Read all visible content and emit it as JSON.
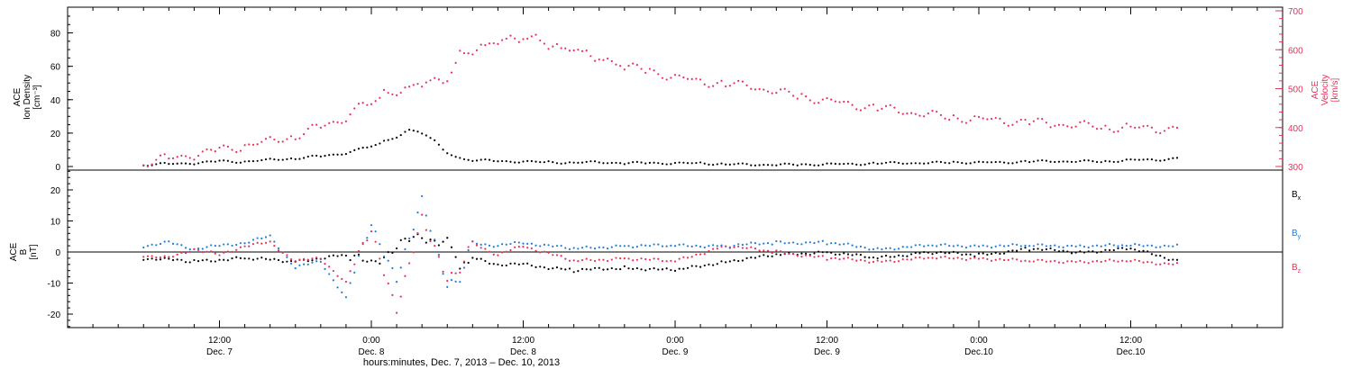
{
  "colors": {
    "black": "#000000",
    "red": "#e8305a",
    "blue": "#1e7be0"
  },
  "chart_data": [
    {
      "type": "scatter",
      "panel": "top",
      "ylabel_left": [
        "ACE",
        "Ion Density",
        "[cm⁻³]"
      ],
      "ylabel_right": [
        "ACE",
        "Velocity",
        "[km/s]"
      ],
      "ylim_left": [
        0,
        90
      ],
      "ylim_right": [
        300,
        700
      ],
      "yticks_left": [
        "0",
        "20",
        "40",
        "60",
        "80"
      ],
      "yticks_right": [
        "300",
        "400",
        "500",
        "600",
        "700"
      ],
      "series": [
        {
          "role": "density",
          "color": "#000000",
          "x": [
            6,
            8,
            10,
            12,
            14,
            16,
            18,
            20,
            22,
            23,
            24,
            25,
            26,
            27,
            28,
            29,
            30,
            31,
            32,
            34,
            36,
            38,
            40,
            42,
            44,
            46,
            48,
            50,
            52,
            54,
            56,
            58,
            60,
            62,
            64,
            66,
            68,
            70,
            72,
            74,
            76,
            78,
            80,
            82,
            84,
            86,
            88
          ],
          "y": [
            1,
            1.5,
            2,
            3,
            3,
            4,
            5,
            6,
            8,
            10,
            12,
            15,
            18,
            22,
            20,
            15,
            8,
            5,
            4,
            3,
            3,
            2.5,
            2.5,
            2.5,
            2,
            2,
            2,
            2,
            1.5,
            1,
            1,
            1,
            1.5,
            1.5,
            2,
            2,
            2,
            2.5,
            2.5,
            2.5,
            3,
            3,
            3,
            3,
            4,
            4,
            5
          ]
        },
        {
          "role": "velocity",
          "color": "#e8305a",
          "x": [
            6,
            8,
            10,
            12,
            14,
            16,
            18,
            20,
            22,
            23,
            24,
            25,
            26,
            27,
            28,
            29,
            30,
            31,
            32,
            33,
            34,
            35,
            36,
            37,
            38,
            39,
            40,
            41,
            42,
            43,
            44,
            46,
            48,
            50,
            52,
            54,
            56,
            58,
            60,
            62,
            64,
            66,
            68,
            70,
            72,
            74,
            76,
            78,
            80,
            82,
            84,
            86,
            88
          ],
          "y": [
            310,
            320,
            330,
            340,
            355,
            365,
            380,
            400,
            425,
            450,
            460,
            490,
            495,
            505,
            510,
            515,
            520,
            595,
            600,
            610,
            615,
            625,
            630,
            640,
            612,
            600,
            595,
            590,
            580,
            575,
            555,
            545,
            530,
            520,
            512,
            505,
            490,
            480,
            470,
            460,
            450,
            440,
            432,
            426,
            423,
            418,
            413,
            408,
            405,
            402,
            400,
            398,
            395
          ]
        }
      ]
    },
    {
      "type": "scatter",
      "panel": "bottom",
      "ylabel": [
        "ACE",
        "B",
        "[nT]"
      ],
      "ylim": [
        -25,
        25
      ],
      "yticks": [
        "-20",
        "-10",
        "0",
        "10",
        "20"
      ],
      "legend": [
        {
          "name": "Bx",
          "color": "#000000"
        },
        {
          "name": "By",
          "color": "#1e7be0"
        },
        {
          "name": "Bz",
          "color": "#e8305a"
        }
      ],
      "series": [
        {
          "name": "Bx",
          "color": "#000000",
          "x": [
            6,
            10,
            14,
            18,
            22,
            24,
            26,
            28,
            30,
            31,
            32,
            34,
            36,
            40,
            44,
            48,
            52,
            56,
            60,
            64,
            68,
            72,
            76,
            80,
            84,
            88
          ],
          "y": [
            -2,
            -3,
            -2,
            -3,
            -1,
            -4,
            2,
            5,
            3,
            -4,
            -2,
            -4,
            -4,
            -6,
            -5,
            -6,
            -3,
            -1,
            0,
            -2,
            0,
            -1,
            1,
            0,
            1,
            -3
          ]
        },
        {
          "name": "By",
          "color": "#1e7be0",
          "x": [
            6,
            8,
            10,
            12,
            14,
            16,
            18,
            20,
            22,
            24,
            26,
            28,
            30,
            31,
            32,
            34,
            36,
            40,
            44,
            48,
            52,
            56,
            60,
            64,
            68,
            72,
            76,
            80,
            84,
            88
          ],
          "y": [
            2,
            3,
            1,
            2,
            3,
            5,
            -5,
            -3,
            -15,
            10,
            -10,
            18,
            -12,
            -8,
            3,
            2,
            3,
            1,
            2,
            2,
            2,
            3,
            3,
            1,
            2,
            2,
            2,
            2,
            2,
            2
          ]
        },
        {
          "name": "Bz",
          "color": "#e8305a",
          "x": [
            6,
            8,
            10,
            12,
            14,
            16,
            18,
            20,
            22,
            24,
            26,
            28,
            30,
            31,
            32,
            34,
            36,
            40,
            44,
            48,
            52,
            56,
            60,
            64,
            68,
            72,
            76,
            80,
            84,
            88
          ],
          "y": [
            -1,
            -2,
            1,
            -1,
            2,
            3,
            -3,
            -2,
            -10,
            8,
            -20,
            12,
            -10,
            -5,
            3,
            -1,
            2,
            -3,
            -2,
            -3,
            2,
            0,
            -2,
            -3,
            -2,
            -2,
            -3,
            -3,
            -3,
            -4
          ]
        }
      ]
    }
  ],
  "time_axis": {
    "range_hours": [
      0,
      96
    ],
    "ticks": [
      {
        "h": 12,
        "time": "12:00",
        "date": "Dec. 7"
      },
      {
        "h": 24,
        "time": "0:00",
        "date": "Dec. 8"
      },
      {
        "h": 36,
        "time": "12:00",
        "date": "Dec. 8"
      },
      {
        "h": 48,
        "time": "0:00",
        "date": "Dec. 9"
      },
      {
        "h": 60,
        "time": "12:00",
        "date": "Dec. 9"
      },
      {
        "h": 72,
        "time": "0:00",
        "date": "Dec.10"
      },
      {
        "h": 84,
        "time": "12:00",
        "date": "Dec.10"
      }
    ],
    "xlabel": "hours:minutes, Dec. 7, 2013 – Dec. 10, 2013"
  }
}
